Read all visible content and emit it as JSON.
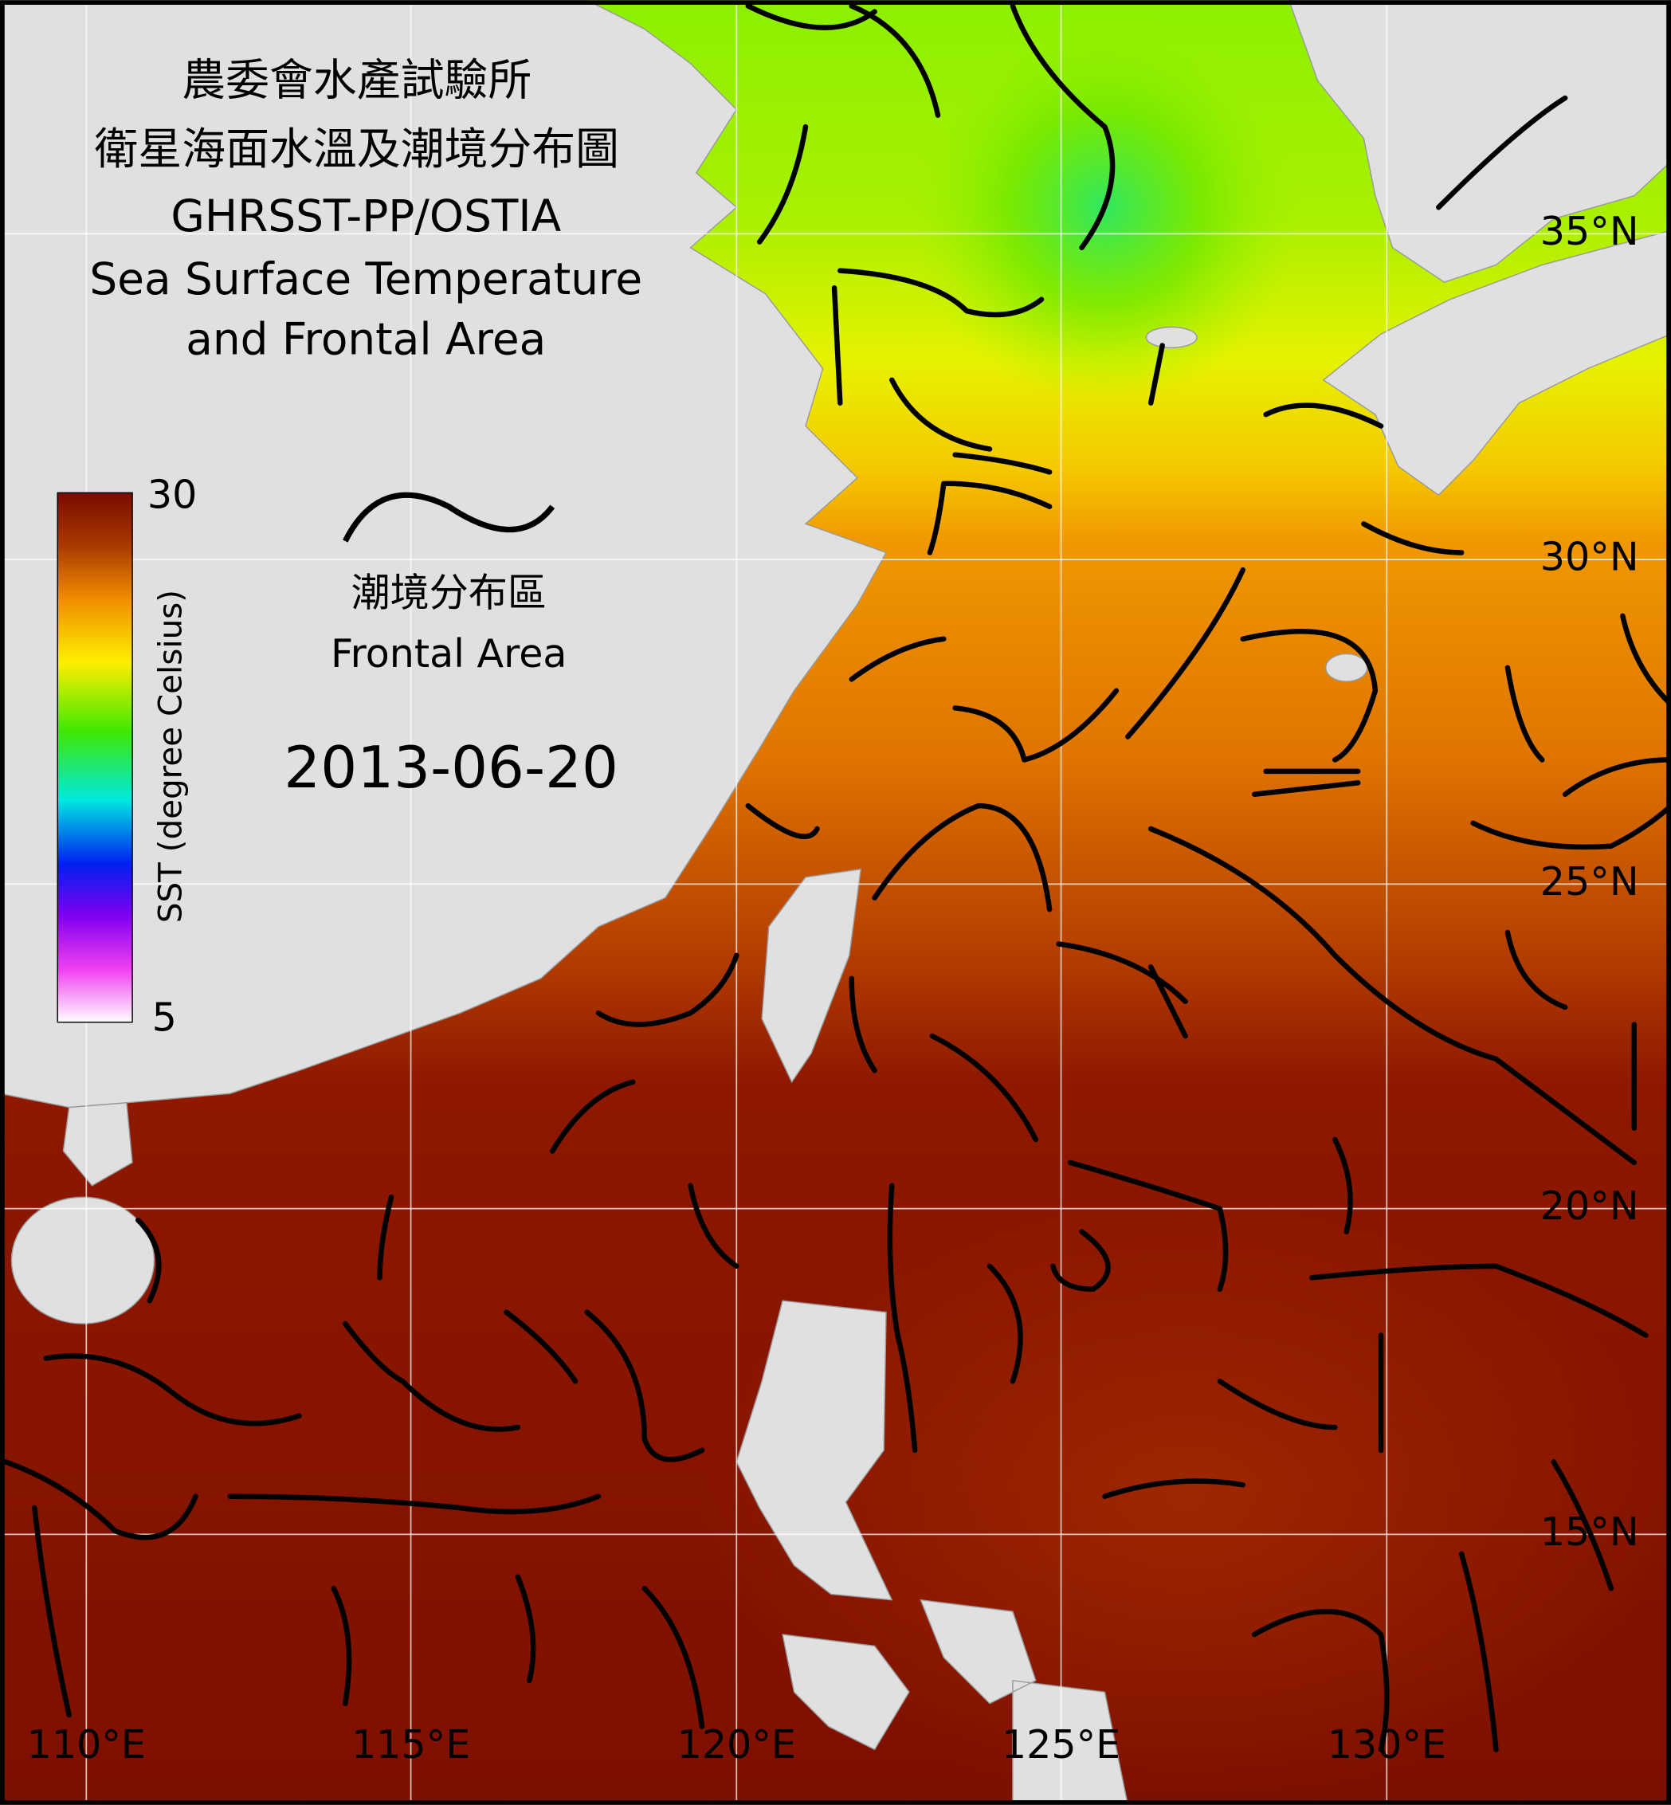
{
  "header": {
    "title_zh": "農委會水產試驗所",
    "subtitle_zh": "衛星海面水溫及潮境分布圖",
    "title_en": [
      "GHRSST-PP/OSTIA",
      "Sea Surface Temperature",
      "and Frontal Area"
    ]
  },
  "colorbar": {
    "label": "SST (degree Celsius)",
    "max": 30,
    "min": 5
  },
  "legend": {
    "label_zh": "潮境分布區",
    "label_en": "Frontal Area"
  },
  "date": "2013-06-20",
  "grid": {
    "lon_labels": [
      "110°E",
      "115°E",
      "120°E",
      "125°E",
      "130°E"
    ],
    "lat_labels": [
      "35°N",
      "30°N",
      "25°N",
      "20°N",
      "15°N"
    ]
  }
}
